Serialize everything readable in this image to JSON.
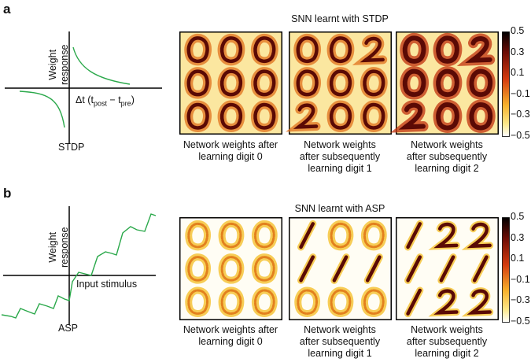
{
  "panel_a": {
    "letter": "a",
    "left_label": "STDP",
    "y_axis_label_line1": "Weight",
    "y_axis_label_line2": "response",
    "x_axis_label_prefix": "Δt (t",
    "x_axis_sub1": "post",
    "x_axis_minus": " − t",
    "x_axis_sub2": "pre",
    "x_axis_suffix": ")",
    "title": "SNN learnt with STDP",
    "captions": [
      [
        "Network weights after",
        "learning digit 0"
      ],
      [
        "Network weights",
        "after subsequently",
        "learning digit 1"
      ],
      [
        "Network weights",
        "after subsequently",
        "learning digit 2"
      ]
    ],
    "grids": [
      [
        "0",
        "0",
        "0",
        "0",
        "0",
        "0",
        "0",
        "0",
        "0"
      ],
      [
        "0",
        "0",
        "2",
        "0",
        "0",
        "0",
        "2",
        "0",
        "0"
      ],
      [
        "0",
        "0",
        "2",
        "0",
        "0",
        "0",
        "2",
        "0",
        "0"
      ]
    ],
    "colorbar_ticks": [
      "0.5",
      "0.3",
      "0.1",
      "−0.1",
      "−0.3",
      "−0.5"
    ]
  },
  "panel_b": {
    "letter": "b",
    "left_label": "ASP",
    "y_axis_label_line1": "Weight",
    "y_axis_label_line2": "response",
    "x_axis_label": "Input stimulus",
    "title": "SNN learnt with ASP",
    "captions": [
      [
        "Network weights after",
        "learning digit 0"
      ],
      [
        "Network weights",
        "after subsequently",
        "learning digit 1"
      ],
      [
        "Network weights",
        "after subsequently",
        "learning digit 2"
      ]
    ],
    "grids": [
      [
        "0",
        "0",
        "0",
        "0",
        "0",
        "0",
        "0",
        "0",
        "0"
      ],
      [
        "1",
        "0",
        "0",
        "1",
        "1",
        "1",
        "0",
        "0",
        "0"
      ],
      [
        "1",
        "2",
        "2",
        "1",
        "1",
        "1",
        "1",
        "2",
        "2"
      ]
    ],
    "colorbar_ticks": [
      "0.5",
      "0.3",
      "0.1",
      "−0.1",
      "−0.3",
      "−0.5"
    ]
  },
  "colors": {
    "curve": "#2aa84a",
    "heat_dark": "#5a0a05",
    "heat_mid": "#d23a10",
    "heat_light": "#f7c030",
    "background": "#ffffff"
  }
}
